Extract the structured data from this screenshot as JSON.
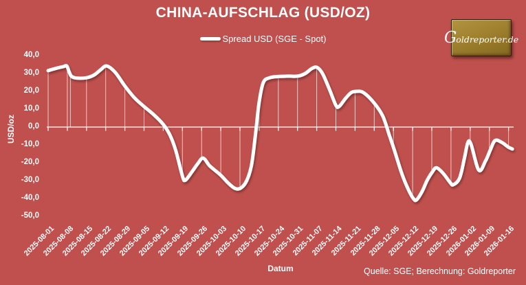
{
  "title": "CHINA-AUFSCHLAG (USD/OZ)",
  "legend": {
    "series_label": "Spread USD (SGE - Spot)"
  },
  "logo": {
    "initial": "G",
    "rest": "oldreporter.de"
  },
  "axes": {
    "y_title": "USD/oz",
    "x_title": "Datum",
    "y_tick_labels": [
      "40,0",
      "30,0",
      "20,0",
      "10,0",
      "0,0",
      "-10,0",
      "-20,0",
      "-30,0",
      "-40,0",
      "-50,0"
    ],
    "y_tick_values": [
      40,
      30,
      20,
      10,
      0,
      -10,
      -20,
      -30,
      -40,
      -50
    ]
  },
  "footer": {
    "source_note": "Quelle: SGE; Berechnung: Goldreporter"
  },
  "colors": {
    "background": "#c0504d",
    "line": "#ffffff",
    "drop_line": "rgba(255,255,255,0.7)",
    "axis": "#ffffff",
    "text": "#ffffff",
    "logo_gold": "#9a7c2c"
  },
  "chart_data": {
    "type": "line",
    "title": "CHINA-AUFSCHLAG (USD/OZ)",
    "xlabel": "Datum",
    "ylabel": "USD/oz",
    "ylim": [
      -50,
      40
    ],
    "y_tick_step": 10,
    "grid": false,
    "legend_position": "top-center",
    "line_style": {
      "smooth": true,
      "stroke_width": 5,
      "drop_lines_to_zero": true
    },
    "categories": [
      "2025-08-01",
      "2025-08-08",
      "2025-08-15",
      "2025-08-22",
      "2025-08-29",
      "2025-09-05",
      "2025-09-12",
      "2025-09-19",
      "2025-09-26",
      "2025-10-03",
      "2025-10-10",
      "2025-10-17",
      "2025-10-24",
      "2025-10-31",
      "2025-11-07",
      "2025-11-14",
      "2025-11-21",
      "2025-11-28",
      "2025-12-05",
      "2025-12-12",
      "2025-12-19",
      "2025-12-26",
      "2026-01-02",
      "2026-01-09",
      "2026-01-16"
    ],
    "series": [
      {
        "name": "Spread USD (SGE - Spot)",
        "values": [
          31.6,
          34.2,
          27.6,
          33.9,
          23.0,
          11.5,
          1.5,
          -27.4,
          -18.3,
          -27.0,
          -34.1,
          14.0,
          28.3,
          28.5,
          33.4,
          12.2,
          19.9,
          13.4,
          -11.5,
          -40.0,
          -24.8,
          -31.4,
          -9.6,
          -13.2,
          -11.3
        ]
      }
    ],
    "smooth_samples": [
      [
        0,
        31.6
      ],
      [
        0.45,
        33.0
      ],
      [
        0.8,
        33.9
      ],
      [
        0.97,
        34.2
      ],
      [
        1.1,
        30.8
      ],
      [
        1.22,
        28.4
      ],
      [
        1.5,
        27.4
      ],
      [
        2,
        27.6
      ],
      [
        2.4,
        29.2
      ],
      [
        2.75,
        32.2
      ],
      [
        3.05,
        34.2
      ],
      [
        3.5,
        30.6
      ],
      [
        4,
        23.0
      ],
      [
        4.5,
        16.4
      ],
      [
        5,
        11.5
      ],
      [
        5.5,
        7.0
      ],
      [
        6,
        1.5
      ],
      [
        6.35,
        -4.5
      ],
      [
        6.65,
        -13.0
      ],
      [
        7,
        -27.4
      ],
      [
        7.15,
        -29.8
      ],
      [
        7.5,
        -25.0
      ],
      [
        7.8,
        -20.5
      ],
      [
        8.08,
        -17.4
      ],
      [
        8.4,
        -21.5
      ],
      [
        8.65,
        -23.8
      ],
      [
        9,
        -27.0
      ],
      [
        9.4,
        -31.5
      ],
      [
        9.75,
        -34.4
      ],
      [
        10.05,
        -34.1
      ],
      [
        10.35,
        -30.0
      ],
      [
        10.6,
        -21.5
      ],
      [
        10.8,
        -5.0
      ],
      [
        11,
        14.0
      ],
      [
        11.22,
        25.0
      ],
      [
        11.55,
        27.6
      ],
      [
        12,
        28.3
      ],
      [
        12.5,
        28.5
      ],
      [
        13,
        28.5
      ],
      [
        13.4,
        30.0
      ],
      [
        13.75,
        32.8
      ],
      [
        14.02,
        33.4
      ],
      [
        14.3,
        30.0
      ],
      [
        14.65,
        21.5
      ],
      [
        15,
        12.2
      ],
      [
        15.17,
        11.5
      ],
      [
        15.5,
        16.0
      ],
      [
        15.8,
        19.3
      ],
      [
        16.1,
        20.0
      ],
      [
        16.45,
        19.2
      ],
      [
        17,
        13.4
      ],
      [
        17.45,
        6.0
      ],
      [
        17.8,
        -5.0
      ],
      [
        18.05,
        -13.0
      ],
      [
        18.45,
        -26.5
      ],
      [
        18.8,
        -35.5
      ],
      [
        19.05,
        -40.2
      ],
      [
        19.2,
        -40.8
      ],
      [
        19.5,
        -36.0
      ],
      [
        19.75,
        -30.0
      ],
      [
        20.05,
        -24.8
      ],
      [
        20.25,
        -22.8
      ],
      [
        20.6,
        -26.0
      ],
      [
        20.95,
        -31.0
      ],
      [
        21.12,
        -32.3
      ],
      [
        21.45,
        -28.5
      ],
      [
        21.7,
        -17.5
      ],
      [
        21.88,
        -8.6
      ],
      [
        22.05,
        -9.8
      ],
      [
        22.45,
        -24.2
      ],
      [
        22.8,
        -19.0
      ],
      [
        23.05,
        -12.8
      ],
      [
        23.3,
        -7.5
      ],
      [
        23.65,
        -8.6
      ],
      [
        24,
        -11.3
      ],
      [
        24.2,
        -12.3
      ]
    ],
    "extra_drop_line_weeks": [
      1.16
    ]
  }
}
